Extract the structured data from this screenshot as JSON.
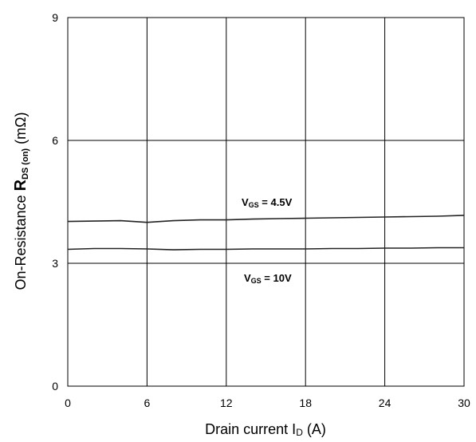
{
  "chart_data": {
    "type": "line",
    "xlabel": {
      "main": "Drain current I",
      "sub": "D",
      "unit": " (A)"
    },
    "ylabel": {
      "pre": "On-Resistance ",
      "symbol": "R",
      "sub": "DS (on)",
      "unit": " (mΩ)"
    },
    "xlim": [
      0,
      30
    ],
    "ylim": [
      0,
      9
    ],
    "x_ticks": [
      "0",
      "6",
      "12",
      "18",
      "24",
      "30"
    ],
    "y_ticks": [
      "0",
      "3",
      "6",
      "9"
    ],
    "grid": true,
    "series": [
      {
        "x": [
          0,
          2,
          4,
          6,
          8,
          10,
          12,
          14,
          16,
          18,
          20,
          22,
          24,
          26,
          28,
          30
        ],
        "y": [
          4.02,
          4.03,
          4.04,
          4.0,
          4.04,
          4.06,
          4.06,
          4.08,
          4.09,
          4.1,
          4.11,
          4.12,
          4.13,
          4.14,
          4.15,
          4.17
        ]
      },
      {
        "x": [
          0,
          2,
          4,
          6,
          8,
          10,
          12,
          14,
          16,
          18,
          20,
          22,
          24,
          26,
          28,
          30
        ],
        "y": [
          3.34,
          3.36,
          3.36,
          3.35,
          3.33,
          3.34,
          3.34,
          3.35,
          3.35,
          3.35,
          3.36,
          3.36,
          3.37,
          3.37,
          3.38,
          3.38
        ]
      }
    ],
    "annotations": [
      {
        "main": "V",
        "sub": "GS",
        "rest": " = 4.5V"
      },
      {
        "main": "V",
        "sub": "GS",
        "rest": " = 10V"
      }
    ]
  }
}
